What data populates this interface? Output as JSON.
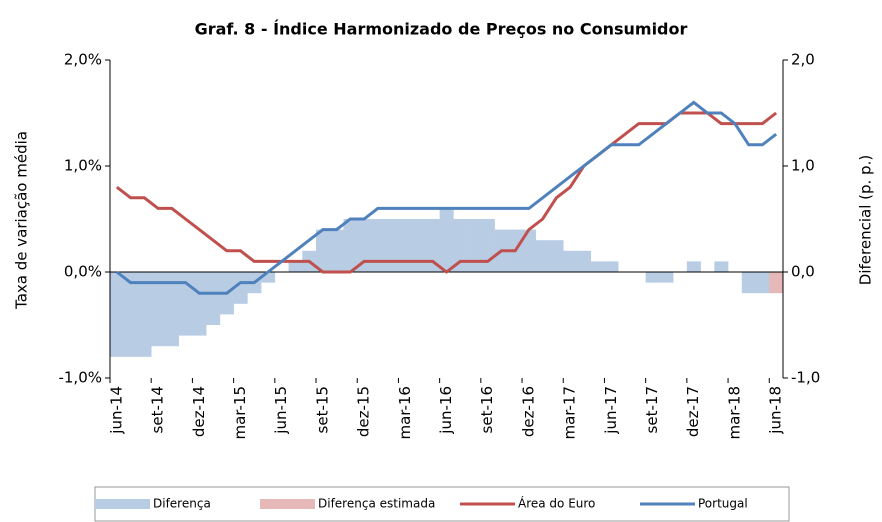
{
  "chart_data": {
    "type": "bar-line",
    "title": "Graf. 8 - Índice Harmonizado de Preços no Consumidor",
    "y_label": "Taxa de variação média",
    "y2_label": "Diferencial (p. p.)",
    "categories": [
      "jun-14",
      null,
      null,
      "set-14",
      null,
      null,
      "dez-14",
      null,
      null,
      "mar-15",
      null,
      null,
      "jun-15",
      null,
      null,
      "set-15",
      null,
      null,
      "dez-15",
      null,
      null,
      "mar-16",
      null,
      null,
      "jun-16",
      null,
      null,
      "set-16",
      null,
      null,
      "dez-16",
      null,
      null,
      "mar-17",
      null,
      null,
      "jun-17",
      null,
      null,
      "set-17",
      null,
      null,
      "dez-17",
      null,
      null,
      "mar-18",
      null,
      null,
      "jun-18"
    ],
    "ylim": [
      -1,
      2
    ],
    "yticks": [
      {
        "value": -1,
        "label": "-1,0%"
      },
      {
        "value": 0,
        "label": "0,0%"
      },
      {
        "value": 1,
        "label": "1,0%"
      },
      {
        "value": 2,
        "label": "2,0%"
      }
    ],
    "y2lim": [
      -1,
      2
    ],
    "y2ticks": [
      {
        "value": -1,
        "label": "-1,0"
      },
      {
        "value": 0,
        "label": "0,0"
      },
      {
        "value": 1,
        "label": "1,0"
      },
      {
        "value": 2,
        "label": "2,0"
      }
    ],
    "series": [
      {
        "name": "Diferença",
        "kind": "bar",
        "axis": "y2",
        "color": "#b8cce4",
        "values": [
          -0.8,
          -0.8,
          -0.8,
          -0.7,
          -0.7,
          -0.6,
          -0.6,
          -0.5,
          -0.4,
          -0.3,
          -0.2,
          -0.1,
          0.0,
          0.1,
          0.2,
          0.4,
          0.4,
          0.5,
          0.5,
          0.5,
          0.5,
          0.5,
          0.5,
          0.5,
          0.6,
          0.5,
          0.5,
          0.5,
          0.4,
          0.4,
          0.4,
          0.3,
          0.3,
          0.2,
          0.2,
          0.1,
          0.1,
          0.0,
          0.0,
          -0.1,
          -0.1,
          0.0,
          0.1,
          0.0,
          0.1,
          0.0,
          -0.2,
          -0.2,
          null
        ]
      },
      {
        "name": "Diferença estimada",
        "kind": "bar",
        "axis": "y2",
        "color": "#e6b9b8",
        "values": [
          null,
          null,
          null,
          null,
          null,
          null,
          null,
          null,
          null,
          null,
          null,
          null,
          null,
          null,
          null,
          null,
          null,
          null,
          null,
          null,
          null,
          null,
          null,
          null,
          null,
          null,
          null,
          null,
          null,
          null,
          null,
          null,
          null,
          null,
          null,
          null,
          null,
          null,
          null,
          null,
          null,
          null,
          null,
          null,
          null,
          null,
          null,
          null,
          -0.2
        ]
      },
      {
        "name": "Área do Euro",
        "kind": "line",
        "color": "#c0504d",
        "values": [
          0.8,
          0.7,
          0.7,
          0.6,
          0.6,
          0.5,
          0.4,
          0.3,
          0.2,
          0.2,
          0.1,
          0.1,
          0.1,
          0.1,
          0.1,
          0.0,
          0.0,
          0.0,
          0.1,
          0.1,
          0.1,
          0.1,
          0.1,
          0.1,
          0.0,
          0.1,
          0.1,
          0.1,
          0.2,
          0.2,
          0.4,
          0.5,
          0.7,
          0.8,
          1.0,
          1.1,
          1.2,
          1.3,
          1.4,
          1.4,
          1.4,
          1.5,
          1.5,
          1.5,
          1.4,
          1.4,
          1.4,
          1.4,
          1.5
        ]
      },
      {
        "name": "Portugal",
        "kind": "line",
        "color": "#4f81bd",
        "values": [
          0.0,
          -0.1,
          -0.1,
          -0.1,
          -0.1,
          -0.1,
          -0.2,
          -0.2,
          -0.2,
          -0.1,
          -0.1,
          0.0,
          0.1,
          0.2,
          0.3,
          0.4,
          0.4,
          0.5,
          0.5,
          0.6,
          0.6,
          0.6,
          0.6,
          0.6,
          0.6,
          0.6,
          0.6,
          0.6,
          0.6,
          0.6,
          0.6,
          0.7,
          0.8,
          0.9,
          1.0,
          1.1,
          1.2,
          1.2,
          1.2,
          1.3,
          1.4,
          1.5,
          1.6,
          1.5,
          1.5,
          1.4,
          1.2,
          1.2,
          1.3
        ]
      }
    ]
  }
}
